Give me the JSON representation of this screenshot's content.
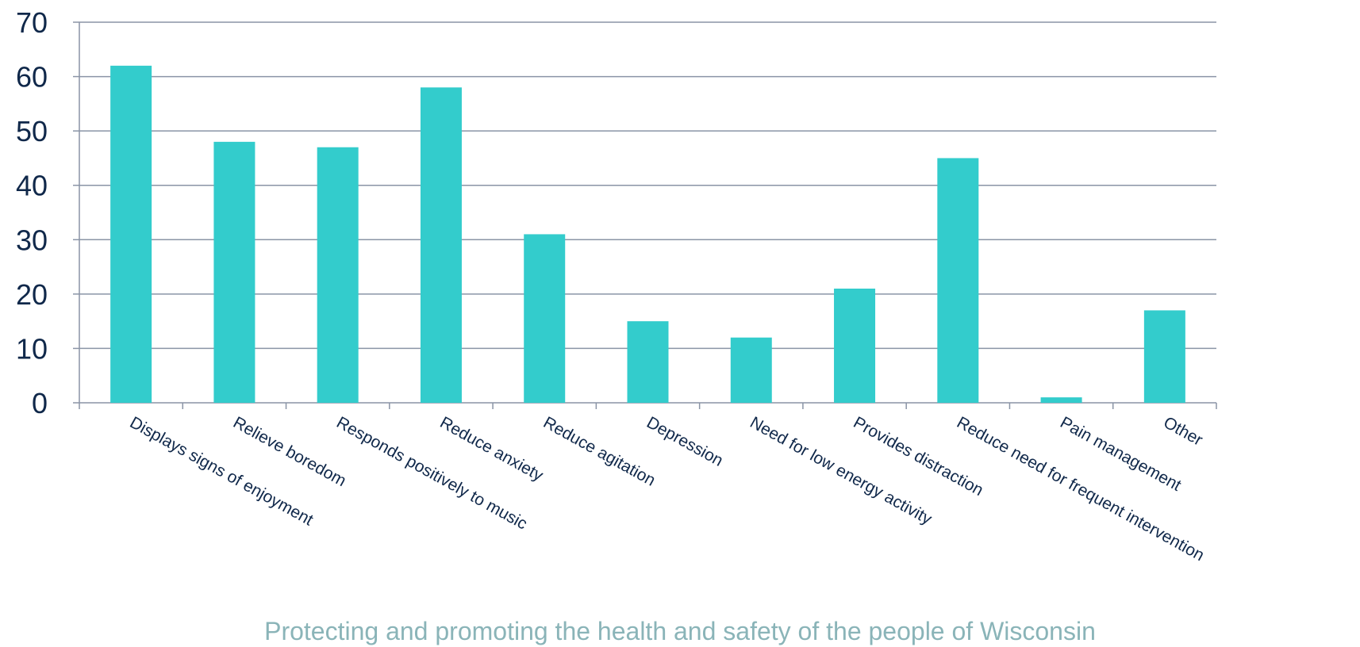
{
  "chart_data": {
    "type": "bar",
    "categories": [
      "Displays signs of enjoyment",
      "Relieve boredom",
      "Responds positively to music",
      "Reduce anxiety",
      "Reduce agitation",
      "Depression",
      "Need for low energy activity",
      "Provides distraction",
      "Reduce need for frequent intervention",
      "Pain management",
      "Other"
    ],
    "values": [
      62,
      48,
      47,
      58,
      31,
      15,
      12,
      21,
      45,
      1,
      17
    ],
    "ylim": [
      0,
      70
    ],
    "yticks": [
      0,
      10,
      20,
      30,
      40,
      50,
      60,
      70
    ],
    "grid": true,
    "legend": "none"
  },
  "colors": {
    "bar": "#33cccc",
    "grid": "#8a94a6",
    "tick_text": "#10284a"
  },
  "footer": {
    "text": "Protecting and promoting the health and safety of the people of Wisconsin"
  }
}
